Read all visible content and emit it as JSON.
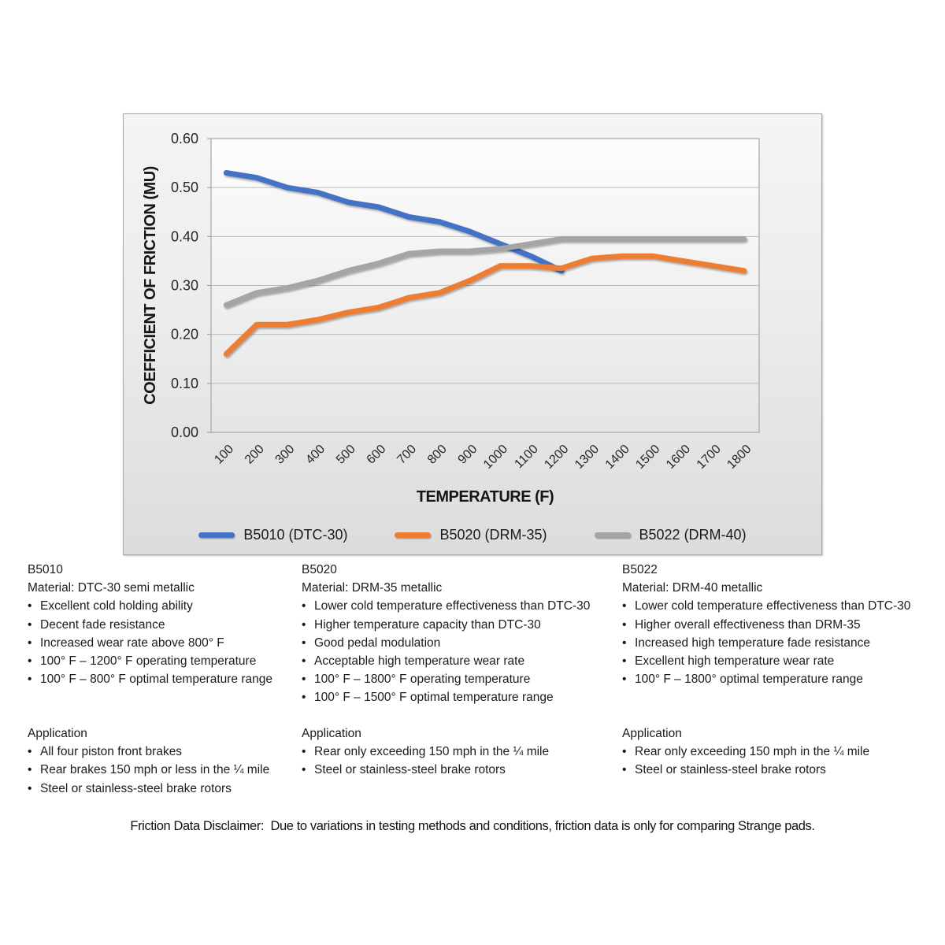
{
  "chart": {
    "y_axis_title": "COEFFICIENT OF FRICTION (MU)",
    "x_axis_title": "TEMPERATURE (F)"
  },
  "chart_data": {
    "type": "line",
    "title": "",
    "xlabel": "TEMPERATURE (F)",
    "ylabel": "COEFFICIENT OF FRICTION (MU)",
    "categories": [
      "100",
      "200",
      "300",
      "400",
      "500",
      "600",
      "700",
      "800",
      "900",
      "1000",
      "1100",
      "1200",
      "1300",
      "1400",
      "1500",
      "1600",
      "1700",
      "1800"
    ],
    "series": [
      {
        "name": "B5010 (DTC-30)",
        "color": "#4472C4",
        "values": [
          0.53,
          0.52,
          0.5,
          0.49,
          0.47,
          0.46,
          0.44,
          0.43,
          0.41,
          0.385,
          0.36,
          0.33
        ]
      },
      {
        "name": "B5020 (DRM-35)",
        "color": "#ED7D31",
        "values": [
          0.16,
          0.22,
          0.22,
          0.23,
          0.245,
          0.255,
          0.275,
          0.285,
          0.31,
          0.34,
          0.34,
          0.335,
          0.355,
          0.36,
          0.36,
          0.35,
          0.34,
          0.33
        ]
      },
      {
        "name": "B5022 (DRM-40)",
        "color": "#A5A5A5",
        "values": [
          0.26,
          0.285,
          0.295,
          0.31,
          0.33,
          0.345,
          0.365,
          0.37,
          0.37,
          0.375,
          0.385,
          0.395,
          0.395,
          0.395,
          0.395,
          0.395,
          0.395,
          0.395
        ]
      }
    ],
    "ylim": [
      0,
      0.6
    ],
    "ytick_step": 0.1,
    "ytick_format_decimals": 2,
    "grid": true,
    "legend_position": "bottom"
  },
  "columns": [
    {
      "name": "B5010",
      "material": "Material: DTC-30 semi metallic",
      "bullets": [
        "Excellent cold holding ability",
        "Decent fade resistance",
        "Increased wear rate above 800° F",
        "100° F – 1200° F operating temperature",
        "100° F – 800° F optimal temperature range"
      ],
      "application_title": "Application",
      "application_bullets": [
        "All four piston front brakes",
        "Rear brakes 150 mph or less in the ¼ mile",
        "Steel or stainless-steel brake rotors"
      ]
    },
    {
      "name": "B5020",
      "material": "Material: DRM-35 metallic",
      "bullets": [
        "Lower cold temperature effectiveness than DTC-30",
        "Higher temperature capacity than DTC-30",
        "Good pedal modulation",
        "Acceptable high temperature wear rate",
        "100° F – 1800° F operating temperature",
        "100° F – 1500° F optimal temperature range"
      ],
      "application_title": "Application",
      "application_bullets": [
        "Rear only exceeding 150 mph in the ¼ mile",
        "Steel or stainless-steel brake rotors"
      ]
    },
    {
      "name": "B5022",
      "material": "Material: DRM-40 metallic",
      "bullets": [
        "Lower cold temperature effectiveness than DTC-30",
        "Higher overall effectiveness than DRM-35",
        "Increased high temperature fade resistance",
        "Excellent high temperature wear rate",
        "100° F – 1800° optimal temperature range"
      ],
      "application_title": "Application",
      "application_bullets": [
        "Rear only exceeding 150 mph in the ¼ mile",
        "Steel or stainless-steel brake rotors"
      ]
    }
  ],
  "disclaimer": "Friction Data Disclaimer:  Due to variations in testing methods and conditions, friction data is only for comparing Strange pads."
}
